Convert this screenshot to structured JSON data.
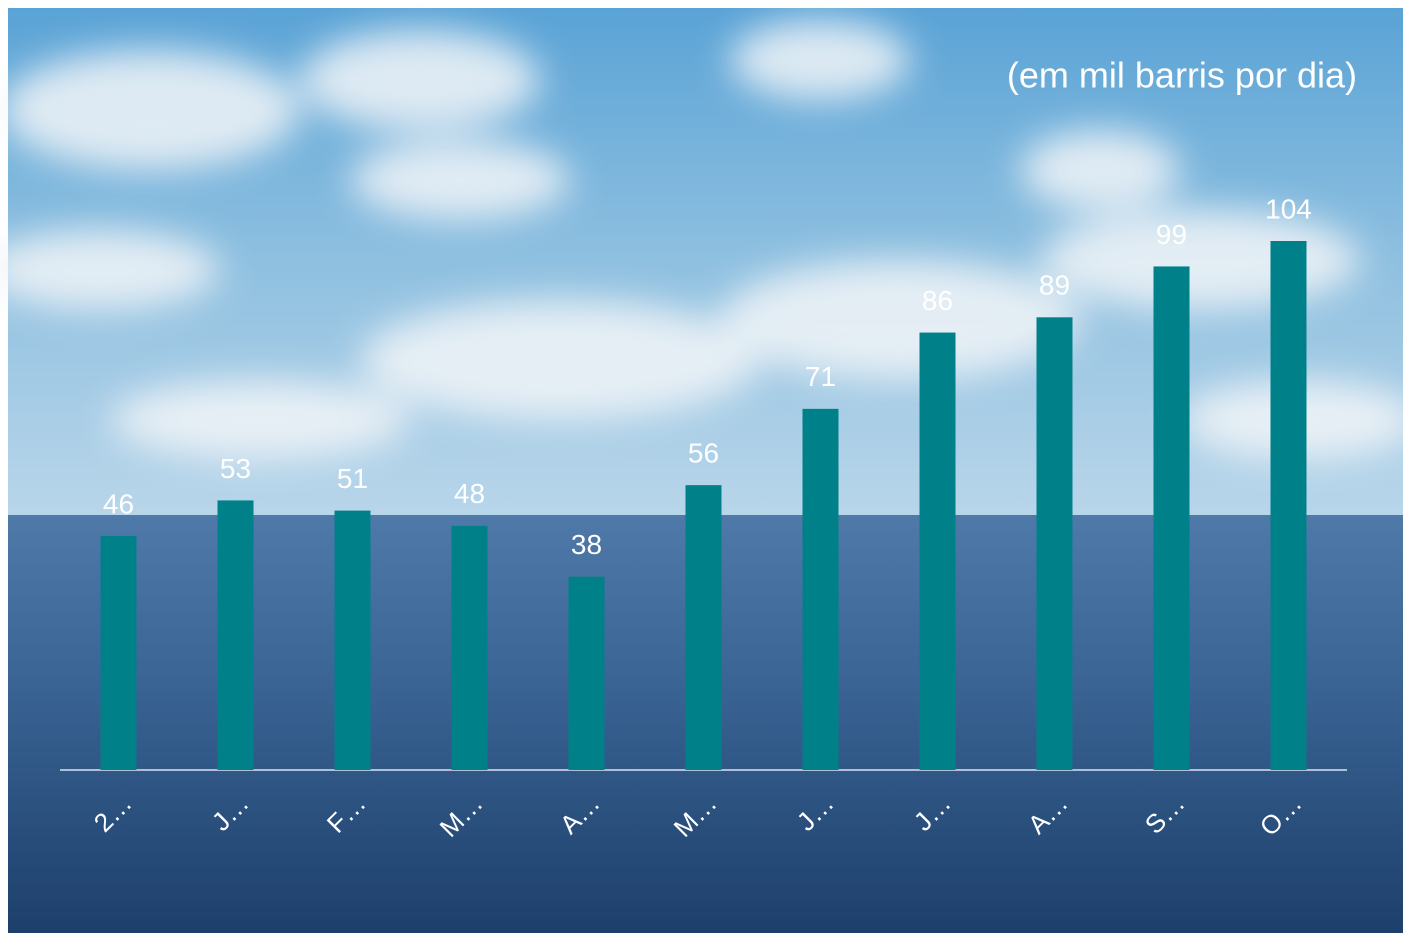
{
  "chart_data": {
    "type": "bar",
    "title": "(em mil barris por dia)",
    "categories": [
      "2…",
      "J…",
      "F…",
      "M…",
      "A…",
      "M…",
      "J…",
      "J…",
      "A…",
      "S…",
      "O…"
    ],
    "values": [
      46,
      53,
      51,
      48,
      38,
      56,
      71,
      86,
      89,
      99,
      104
    ],
    "color": "#00818a"
  }
}
